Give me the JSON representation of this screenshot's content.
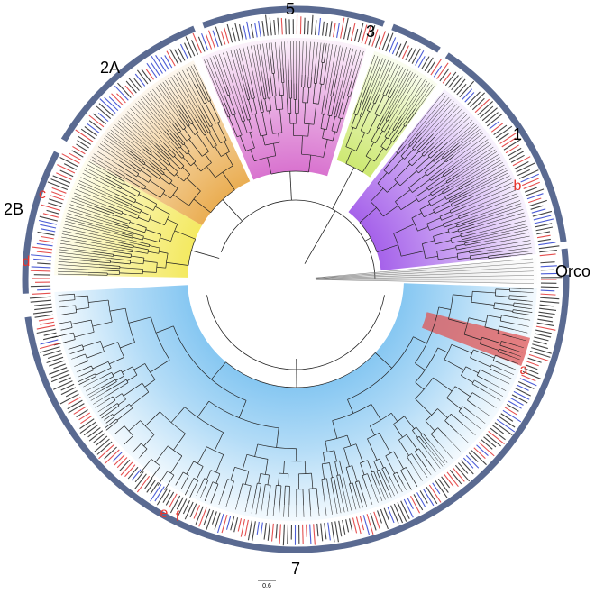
{
  "clades": [
    {
      "key": "c5",
      "label": "5",
      "color": "#d35fc8"
    },
    {
      "key": "c3",
      "label": "3",
      "color": "#bfe24a"
    },
    {
      "key": "c1",
      "label": "1",
      "color": "#a561ea"
    },
    {
      "key": "orco",
      "label": "Orco",
      "color": "#e6e6e6"
    },
    {
      "key": "c7",
      "label": "7",
      "color": "#75bff0"
    },
    {
      "key": "c2b",
      "label": "2B",
      "color": "#f2e64a"
    },
    {
      "key": "c2a",
      "label": "2A",
      "color": "#e7a23a"
    }
  ],
  "subclade_highlight_color": "#e05555",
  "ring_color": "#5a6a91",
  "name_colors": [
    "#e03030",
    "#2b3fcf",
    "#222222"
  ],
  "markers": [
    {
      "key": "a",
      "label": "a"
    },
    {
      "key": "b",
      "label": "b"
    },
    {
      "key": "c",
      "label": "c"
    },
    {
      "key": "d",
      "label": "d"
    },
    {
      "key": "e",
      "label": "e"
    },
    {
      "key": "f",
      "label": "f"
    }
  ],
  "marker_color": "#e8342d",
  "scale_bar": {
    "label": "0.6"
  }
}
